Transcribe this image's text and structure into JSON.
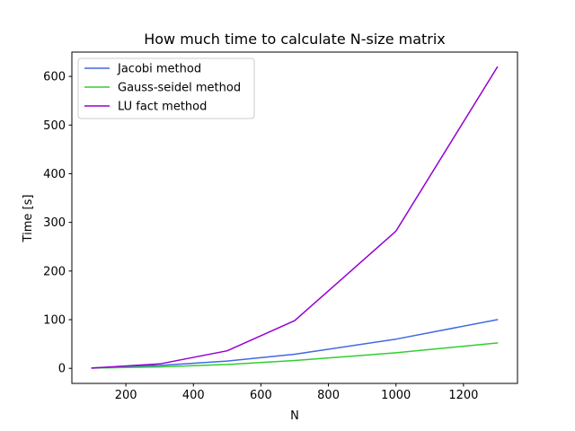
{
  "chart_data": {
    "type": "line",
    "title": "How much time to calculate N-size matrix",
    "xlabel": "N",
    "ylabel": "Time [s]",
    "xlim": [
      40,
      1360
    ],
    "ylim": [
      -31,
      650
    ],
    "xticks": [
      200,
      400,
      600,
      800,
      1000,
      1200
    ],
    "yticks": [
      0,
      100,
      200,
      300,
      400,
      500,
      600
    ],
    "grid": false,
    "legend_position": "top-left",
    "x": [
      100,
      300,
      500,
      700,
      1000,
      1300
    ],
    "series": [
      {
        "name": "Jacobi method",
        "color": "#4169e1",
        "values": [
          1,
          6,
          15,
          29,
          60,
          100
        ]
      },
      {
        "name": "Gauss-seidel method",
        "color": "#32cd32",
        "values": [
          0.5,
          3,
          8,
          16,
          32,
          52
        ]
      },
      {
        "name": "LU fact method",
        "color": "#9400d3",
        "values": [
          0.5,
          9,
          36,
          98,
          282,
          619
        ]
      }
    ]
  }
}
